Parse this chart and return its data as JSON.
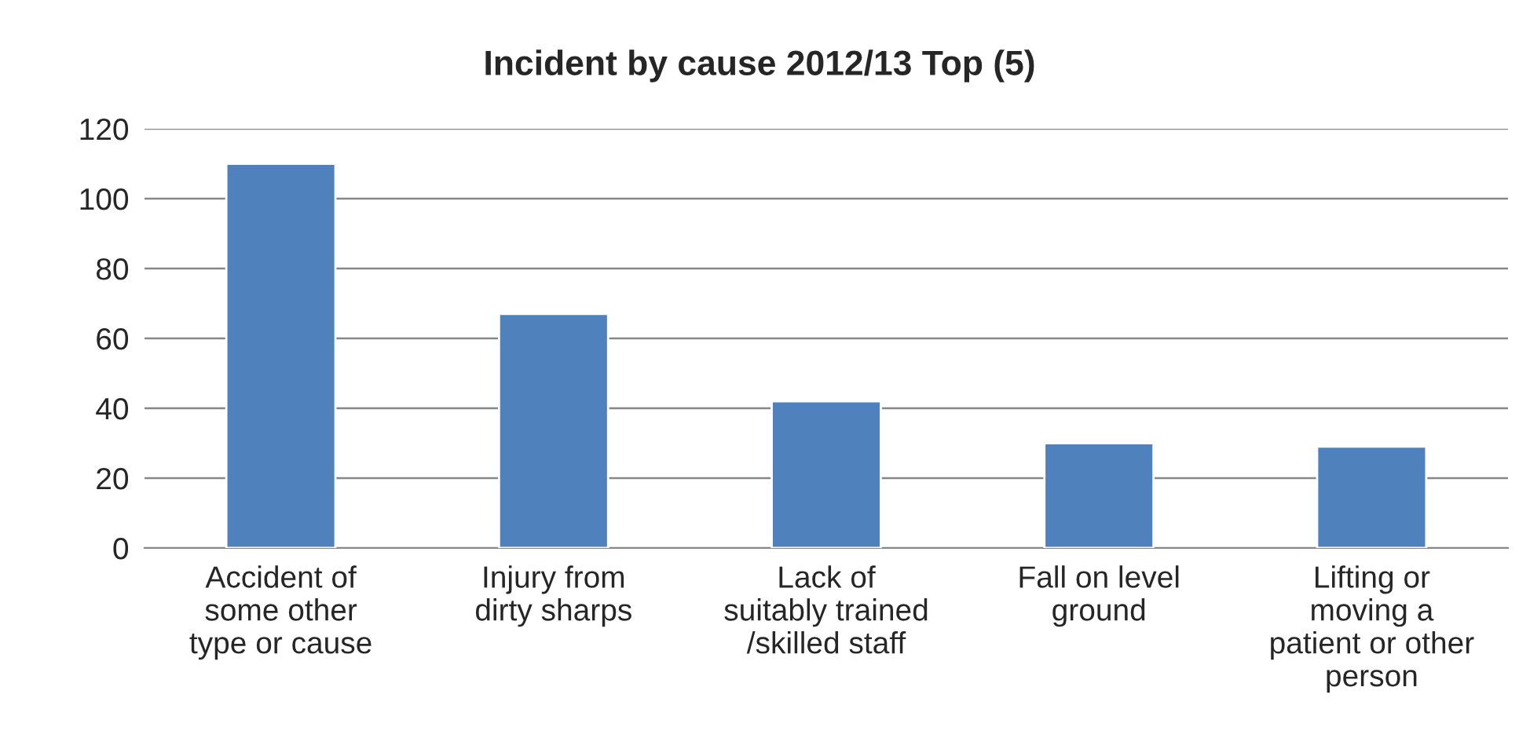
{
  "chart_data": {
    "type": "bar",
    "title": "Incident by cause 2012/13 Top (5)",
    "categories": [
      "Accident of\nsome other\ntype or cause",
      "Injury from\ndirty sharps",
      "Lack of\nsuitably trained\n/skilled staff",
      "Fall on level\nground",
      "Lifting or\nmoving a\npatient or other\nperson"
    ],
    "values": [
      110,
      67,
      42,
      30,
      29
    ],
    "color": "#4f81bd",
    "ylim": [
      0,
      120
    ],
    "yticks": [
      0,
      20,
      40,
      60,
      80,
      100,
      120
    ],
    "grid": "y"
  }
}
